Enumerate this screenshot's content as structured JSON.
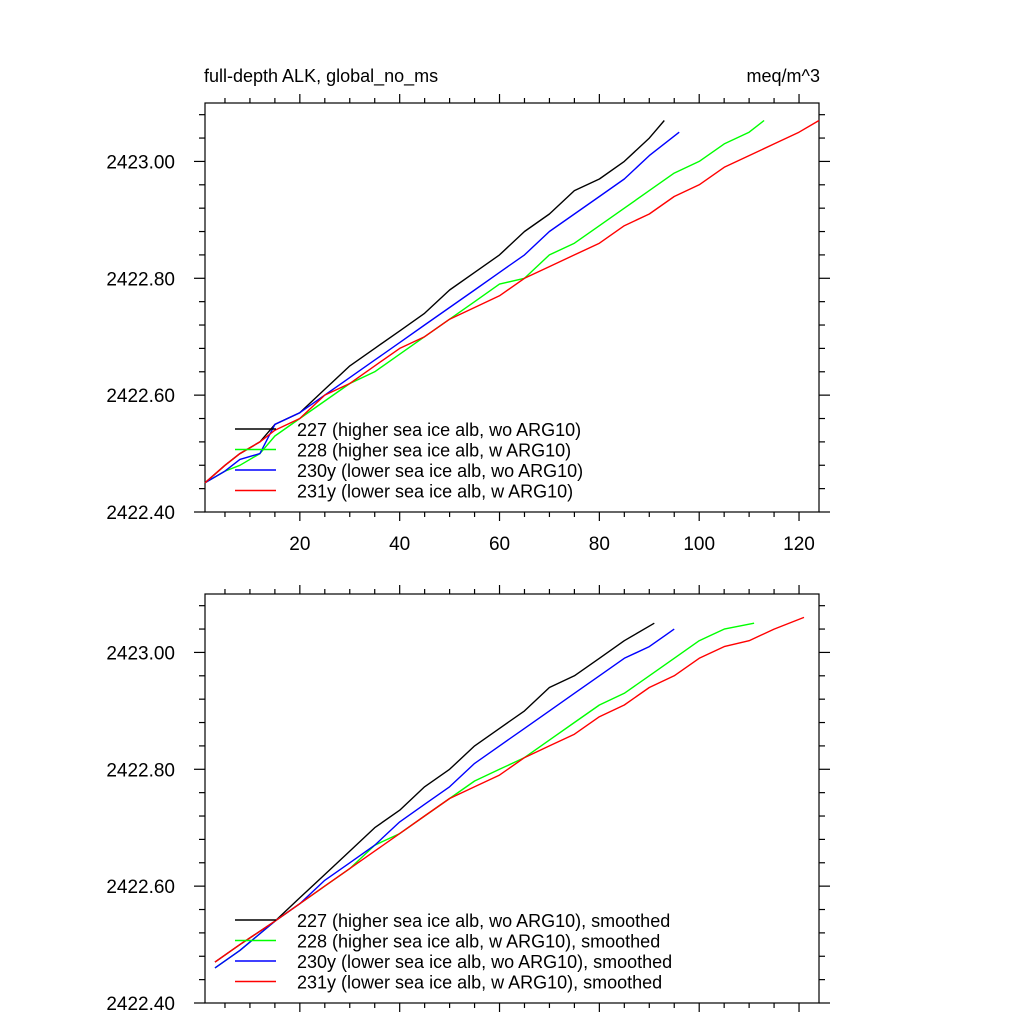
{
  "chart_data": [
    {
      "type": "line",
      "title": "full-depth ALK, global_no_ms",
      "units": "meq/m^3",
      "xlim": [
        1,
        124
      ],
      "ylim": [
        2422.4,
        2423.1
      ],
      "xticks": [
        20,
        40,
        60,
        80,
        100,
        120
      ],
      "xtick_labels": [
        "20",
        "40",
        "60",
        "80",
        "100",
        "120"
      ],
      "yticks": [
        2422.4,
        2422.6,
        2422.8,
        2423.0
      ],
      "ytick_labels": [
        "2422.40",
        "2422.60",
        "2422.80",
        "2423.00"
      ],
      "show_xtick_labels": true,
      "series": [
        {
          "name": "227 (higher sea ice alb, wo ARG10)",
          "color": "#000000",
          "x": [
            1,
            5,
            8,
            12,
            15,
            20,
            25,
            30,
            35,
            40,
            45,
            50,
            55,
            60,
            65,
            70,
            75,
            80,
            85,
            90,
            93
          ],
          "y": [
            2422.45,
            2422.48,
            2422.5,
            2422.52,
            2422.55,
            2422.57,
            2422.61,
            2422.65,
            2422.68,
            2422.71,
            2422.74,
            2422.78,
            2422.81,
            2422.84,
            2422.88,
            2422.91,
            2422.95,
            2422.97,
            2423.0,
            2423.04,
            2423.07
          ]
        },
        {
          "name": "228 (higher sea ice alb, w ARG10)",
          "color": "#00ff00",
          "x": [
            1,
            5,
            8,
            12,
            15,
            20,
            25,
            30,
            35,
            40,
            45,
            50,
            55,
            60,
            65,
            70,
            75,
            80,
            85,
            90,
            95,
            100,
            105,
            110,
            113
          ],
          "y": [
            2422.45,
            2422.47,
            2422.48,
            2422.5,
            2422.53,
            2422.56,
            2422.59,
            2422.62,
            2422.64,
            2422.67,
            2422.7,
            2422.73,
            2422.76,
            2422.79,
            2422.8,
            2422.84,
            2422.86,
            2422.89,
            2422.92,
            2422.95,
            2422.98,
            2423.0,
            2423.03,
            2423.05,
            2423.07
          ]
        },
        {
          "name": "230y (lower sea ice alb, wo ARG10)",
          "color": "#0000ff",
          "x": [
            1,
            5,
            8,
            12,
            15,
            20,
            25,
            30,
            35,
            40,
            45,
            50,
            55,
            60,
            65,
            70,
            75,
            80,
            85,
            90,
            96
          ],
          "y": [
            2422.45,
            2422.47,
            2422.49,
            2422.5,
            2422.55,
            2422.57,
            2422.6,
            2422.63,
            2422.66,
            2422.69,
            2422.72,
            2422.75,
            2422.78,
            2422.81,
            2422.84,
            2422.88,
            2422.91,
            2422.94,
            2422.97,
            2423.01,
            2423.05
          ]
        },
        {
          "name": "231y (lower sea ice alb, w ARG10)",
          "color": "#ff0000",
          "x": [
            1,
            5,
            8,
            12,
            15,
            20,
            25,
            30,
            35,
            40,
            45,
            50,
            55,
            60,
            65,
            70,
            75,
            80,
            85,
            90,
            95,
            100,
            105,
            110,
            115,
            120,
            124
          ],
          "y": [
            2422.45,
            2422.48,
            2422.5,
            2422.52,
            2422.54,
            2422.56,
            2422.6,
            2422.62,
            2422.65,
            2422.68,
            2422.7,
            2422.73,
            2422.75,
            2422.77,
            2422.8,
            2422.82,
            2422.84,
            2422.86,
            2422.89,
            2422.91,
            2422.94,
            2422.96,
            2422.99,
            2423.01,
            2423.03,
            2423.05,
            2423.07
          ]
        }
      ]
    },
    {
      "type": "line",
      "title": "",
      "units": "",
      "xlim": [
        1,
        124
      ],
      "ylim": [
        2422.4,
        2423.1
      ],
      "xticks": [
        20,
        40,
        60,
        80,
        100,
        120
      ],
      "xtick_labels": [
        "20",
        "40",
        "60",
        "80",
        "100",
        "120"
      ],
      "yticks": [
        2422.4,
        2422.6,
        2422.8,
        2423.0
      ],
      "ytick_labels": [
        "2422.40",
        "2422.60",
        "2422.80",
        "2423.00"
      ],
      "show_xtick_labels": false,
      "series": [
        {
          "name": "227 (higher sea ice alb, wo ARG10), smoothed",
          "color": "#000000",
          "x": [
            3,
            8,
            15,
            20,
            25,
            30,
            35,
            40,
            45,
            50,
            55,
            60,
            65,
            70,
            75,
            80,
            85,
            91
          ],
          "y": [
            2422.47,
            2422.5,
            2422.54,
            2422.58,
            2422.62,
            2422.66,
            2422.7,
            2422.73,
            2422.77,
            2422.8,
            2422.84,
            2422.87,
            2422.9,
            2422.94,
            2422.96,
            2422.99,
            2423.02,
            2423.05
          ]
        },
        {
          "name": "228 (higher sea ice alb, w ARG10), smoothed",
          "color": "#00ff00",
          "x": [
            3,
            8,
            15,
            20,
            25,
            30,
            35,
            40,
            45,
            50,
            55,
            60,
            65,
            70,
            75,
            80,
            85,
            90,
            95,
            100,
            105,
            111
          ],
          "y": [
            2422.46,
            2422.49,
            2422.54,
            2422.57,
            2422.6,
            2422.63,
            2422.67,
            2422.69,
            2422.72,
            2422.75,
            2422.78,
            2422.8,
            2422.82,
            2422.85,
            2422.88,
            2422.91,
            2422.93,
            2422.96,
            2422.99,
            2423.02,
            2423.04,
            2423.05
          ]
        },
        {
          "name": "230y (lower sea ice alb, wo ARG10), smoothed",
          "color": "#0000ff",
          "x": [
            3,
            8,
            15,
            20,
            25,
            30,
            35,
            40,
            45,
            50,
            55,
            60,
            65,
            70,
            75,
            80,
            85,
            90,
            95
          ],
          "y": [
            2422.46,
            2422.49,
            2422.54,
            2422.57,
            2422.61,
            2422.64,
            2422.67,
            2422.71,
            2422.74,
            2422.77,
            2422.81,
            2422.84,
            2422.87,
            2422.9,
            2422.93,
            2422.96,
            2422.99,
            2423.01,
            2423.04
          ]
        },
        {
          "name": "231y (lower sea ice alb, w ARG10), smoothed",
          "color": "#ff0000",
          "x": [
            3,
            8,
            15,
            20,
            25,
            30,
            35,
            40,
            45,
            50,
            55,
            60,
            65,
            70,
            75,
            80,
            85,
            90,
            95,
            100,
            105,
            110,
            115,
            121
          ],
          "y": [
            2422.47,
            2422.5,
            2422.54,
            2422.57,
            2422.6,
            2422.63,
            2422.66,
            2422.69,
            2422.72,
            2422.75,
            2422.77,
            2422.79,
            2422.82,
            2422.84,
            2422.86,
            2422.89,
            2422.91,
            2422.94,
            2422.96,
            2422.99,
            2423.01,
            2423.02,
            2423.04,
            2423.06
          ]
        }
      ]
    }
  ]
}
